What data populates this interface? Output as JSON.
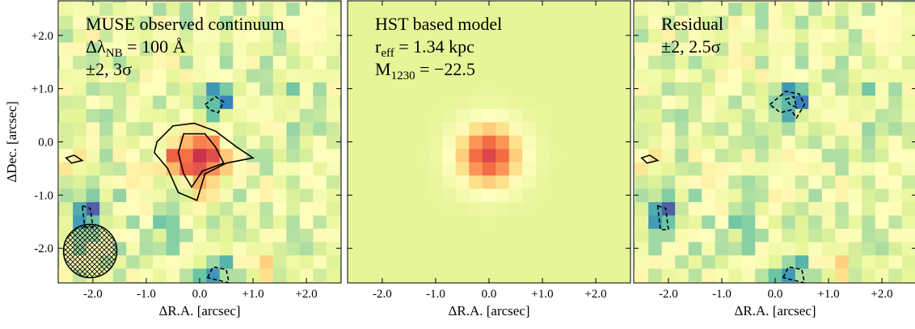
{
  "chart_data": [
    {
      "type": "heatmap",
      "xlabel": "ΔR.A. [arcsec]",
      "ylabel": "ΔDec. [arcsec]",
      "annotations": [
        {
          "text": "MUSE observed continuum"
        },
        {
          "text": "Δλ",
          "sub": "NB",
          "rest": " = 100 Å"
        },
        {
          "text": "±2, 3σ"
        }
      ],
      "xlim": [
        -2.65,
        2.65
      ],
      "ylim": [
        -2.65,
        2.65
      ],
      "xticks": [
        {
          "value": -2,
          "label": "-2.0"
        },
        {
          "value": -1,
          "label": "-1.0"
        },
        {
          "value": 0,
          "label": "0.0"
        },
        {
          "value": 1,
          "label": "+1.0"
        },
        {
          "value": 2,
          "label": "+2.0"
        }
      ],
      "yticks": [
        {
          "value": -2,
          "label": "-2.0"
        },
        {
          "value": -1,
          "label": "-1.0"
        },
        {
          "value": 0,
          "label": "0.0"
        },
        {
          "value": 1,
          "label": "+1.0"
        },
        {
          "value": 2,
          "label": "+2.0"
        }
      ]
    },
    {
      "type": "heatmap",
      "xlabel": "ΔR.A. [arcsec]",
      "annotations": [
        {
          "text": "HST based model"
        },
        {
          "text": "r",
          "sub": "eff",
          "rest": " = 1.34 kpc"
        },
        {
          "text": "M",
          "sub": "1230",
          "rest": " = −22.5"
        }
      ],
      "xlim": [
        -2.65,
        2.65
      ],
      "ylim": [
        -2.65,
        2.65
      ],
      "xticks": [
        {
          "value": -2,
          "label": "-2.0"
        },
        {
          "value": -1,
          "label": "-1.0"
        },
        {
          "value": 0,
          "label": "0.0"
        },
        {
          "value": 1,
          "label": "+1.0"
        },
        {
          "value": 2,
          "label": "+2.0"
        }
      ],
      "yticks": [
        -2,
        -1,
        0,
        1,
        2
      ]
    },
    {
      "type": "heatmap",
      "xlabel": "ΔR.A. [arcsec]",
      "annotations": [
        {
          "text": "Residual"
        },
        {
          "text": "±2, 2.5σ"
        }
      ],
      "xlim": [
        -2.65,
        2.65
      ],
      "ylim": [
        -2.65,
        2.65
      ],
      "xticks": [
        {
          "value": -2,
          "label": "-2.0"
        },
        {
          "value": -1,
          "label": "-1.0"
        },
        {
          "value": 0,
          "label": "0.0"
        },
        {
          "value": 1,
          "label": "+1.0"
        },
        {
          "value": 2,
          "label": "+2.0"
        }
      ],
      "yticks": [
        -2,
        -1,
        0,
        1,
        2
      ]
    }
  ]
}
